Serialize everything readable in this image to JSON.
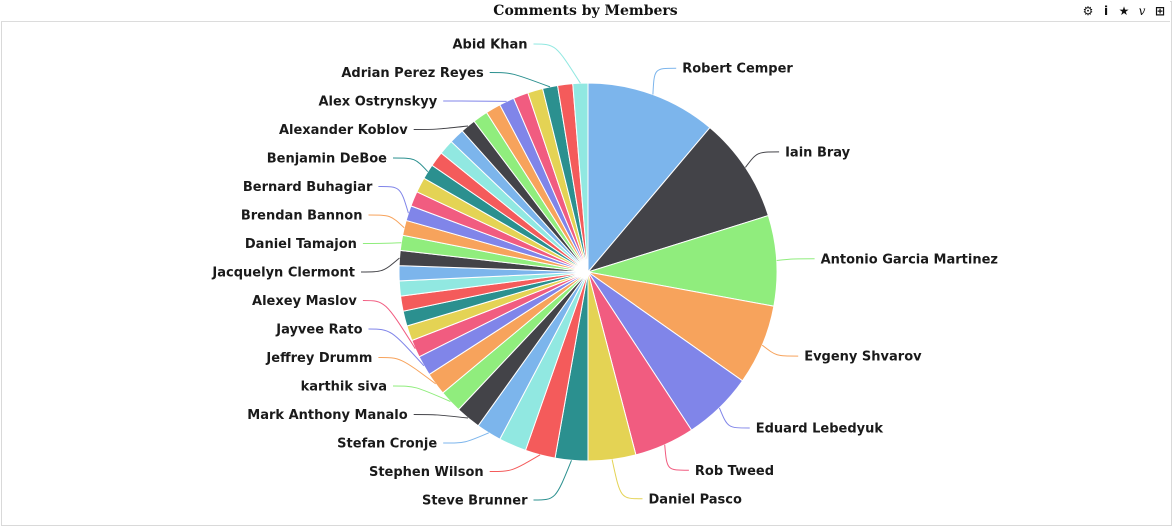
{
  "window": {
    "title": "Comments by Members",
    "tools": [
      {
        "name": "settings-icon",
        "glyph": "⚙"
      },
      {
        "name": "info-icon",
        "glyph": "i"
      },
      {
        "name": "star-icon",
        "glyph": "★"
      },
      {
        "name": "variable-icon",
        "glyph": "v"
      },
      {
        "name": "table-icon",
        "glyph": "⊞"
      }
    ]
  },
  "chart_data": {
    "type": "pie",
    "title": "Comments by Members",
    "slices": [
      {
        "label": "Robert Cemper",
        "value": 52,
        "color": "#7cb5ec"
      },
      {
        "label": "Iain Bray",
        "value": 42,
        "color": "#434348"
      },
      {
        "label": "Antonio Garcia Martinez",
        "value": 36,
        "color": "#90ed7d"
      },
      {
        "label": "Evgeny Shvarov",
        "value": 32,
        "color": "#f7a35c"
      },
      {
        "label": "Eduard Lebedyuk",
        "value": 28,
        "color": "#8085e9"
      },
      {
        "label": "Rob Tweed",
        "value": 24,
        "color": "#f15c80"
      },
      {
        "label": "Daniel Pasco",
        "value": 19,
        "color": "#e4d354"
      },
      {
        "label": "Steve Brunner",
        "value": 13,
        "color": "#2b908f"
      },
      {
        "label": "Stephen Wilson",
        "value": 12,
        "color": "#f45b5b"
      },
      {
        "label": "",
        "value": 11,
        "color": "#91e8e1"
      },
      {
        "label": "Stefan Cronje",
        "value": 10,
        "color": "#7cb5ec"
      },
      {
        "label": "Mark Anthony Manalo",
        "value": 10,
        "color": "#434348"
      },
      {
        "label": "karthik siva",
        "value": 9,
        "color": "#90ed7d"
      },
      {
        "label": "Jeffrey Drumm",
        "value": 9,
        "color": "#f7a35c"
      },
      {
        "label": "Jayvee Rato",
        "value": 8,
        "color": "#8085e9"
      },
      {
        "label": "Alexey Maslov",
        "value": 7,
        "color": "#f15c80"
      },
      {
        "label": "",
        "value": 6,
        "color": "#e4d354"
      },
      {
        "label": "",
        "value": 6,
        "color": "#2b908f"
      },
      {
        "label": "",
        "value": 6,
        "color": "#f45b5b"
      },
      {
        "label": "",
        "value": 6,
        "color": "#91e8e1"
      },
      {
        "label": "",
        "value": 6,
        "color": "#7cb5ec"
      },
      {
        "label": "Jacquelyn Clermont",
        "value": 6,
        "color": "#434348"
      },
      {
        "label": "Daniel Tamajon",
        "value": 6,
        "color": "#90ed7d"
      },
      {
        "label": "Brendan Bannon",
        "value": 6,
        "color": "#f7a35c"
      },
      {
        "label": "Bernard Buhagiar",
        "value": 6,
        "color": "#8085e9"
      },
      {
        "label": "",
        "value": 6,
        "color": "#f15c80"
      },
      {
        "label": "",
        "value": 6,
        "color": "#e4d354"
      },
      {
        "label": "Benjamin DeBoe",
        "value": 6,
        "color": "#2b908f"
      },
      {
        "label": "",
        "value": 6,
        "color": "#f45b5b"
      },
      {
        "label": "",
        "value": 6,
        "color": "#91e8e1"
      },
      {
        "label": "",
        "value": 6,
        "color": "#7cb5ec"
      },
      {
        "label": "Alexander Koblov",
        "value": 6,
        "color": "#434348"
      },
      {
        "label": "",
        "value": 6,
        "color": "#90ed7d"
      },
      {
        "label": "",
        "value": 6,
        "color": "#f7a35c"
      },
      {
        "label": "Alex Ostrynskyy",
        "value": 6,
        "color": "#8085e9"
      },
      {
        "label": "",
        "value": 6,
        "color": "#f15c80"
      },
      {
        "label": "",
        "value": 6,
        "color": "#e4d354"
      },
      {
        "label": "Adrian Perez Reyes",
        "value": 6,
        "color": "#2b908f"
      },
      {
        "label": "",
        "value": 6,
        "color": "#f45b5b"
      },
      {
        "label": "Abid Khan",
        "value": 6,
        "color": "#91e8e1"
      }
    ]
  }
}
